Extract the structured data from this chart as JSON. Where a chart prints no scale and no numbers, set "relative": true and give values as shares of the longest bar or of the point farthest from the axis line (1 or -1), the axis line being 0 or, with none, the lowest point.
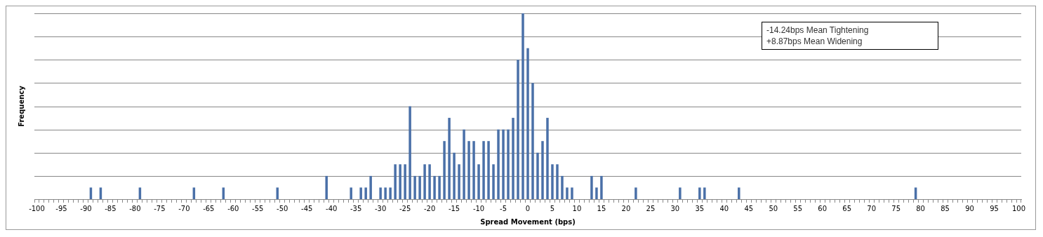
{
  "chart_data": {
    "type": "bar",
    "xlabel": "Spread Movement (bps)",
    "ylabel": "Frequency",
    "relative": true,
    "grid": "y",
    "legend": false,
    "color": "#4a70a8",
    "categories": [
      "-100",
      null,
      null,
      null,
      null,
      "-95",
      null,
      null,
      null,
      null,
      "-90",
      null,
      null,
      null,
      null,
      "-85",
      null,
      null,
      null,
      null,
      "-80",
      null,
      null,
      null,
      null,
      "-75",
      null,
      null,
      null,
      null,
      "-70",
      null,
      null,
      null,
      null,
      "-65",
      null,
      null,
      null,
      null,
      "-60",
      null,
      null,
      null,
      null,
      "-55",
      null,
      null,
      null,
      null,
      "-50",
      null,
      null,
      null,
      null,
      "-45",
      null,
      null,
      null,
      null,
      "-40",
      null,
      null,
      null,
      null,
      "-35",
      null,
      null,
      null,
      null,
      "-30",
      null,
      null,
      null,
      null,
      "-25",
      null,
      null,
      null,
      null,
      "-20",
      null,
      null,
      null,
      null,
      "-15",
      null,
      null,
      null,
      null,
      "-10",
      null,
      null,
      null,
      null,
      "-5",
      null,
      null,
      null,
      null,
      "0",
      null,
      null,
      null,
      null,
      "5",
      null,
      null,
      null,
      null,
      "10",
      null,
      null,
      null,
      null,
      "15",
      null,
      null,
      null,
      null,
      "20",
      null,
      null,
      null,
      null,
      "25",
      null,
      null,
      null,
      null,
      "30",
      null,
      null,
      null,
      null,
      "35",
      null,
      null,
      null,
      null,
      "40",
      null,
      null,
      null,
      null,
      "45",
      null,
      null,
      null,
      null,
      "50",
      null,
      null,
      null,
      null,
      "55",
      null,
      null,
      null,
      null,
      "60",
      null,
      null,
      null,
      null,
      "65",
      null,
      null,
      null,
      null,
      "70",
      null,
      null,
      null,
      null,
      "75",
      null,
      null,
      null,
      null,
      "80",
      null,
      null,
      null,
      null,
      "85",
      null,
      null,
      null,
      null,
      "90",
      null,
      null,
      null,
      null,
      "95",
      null,
      null,
      null,
      null,
      "100"
    ],
    "values": [
      0,
      0,
      0,
      0,
      0,
      0,
      0,
      0,
      0,
      0,
      0,
      0.0625,
      0,
      0.0625,
      0,
      0,
      0,
      0,
      0,
      0,
      0,
      0.0625,
      0,
      0,
      0,
      0,
      0,
      0,
      0,
      0,
      0,
      0,
      0.0625,
      0,
      0,
      0,
      0,
      0,
      0.0625,
      0,
      0,
      0,
      0,
      0,
      0,
      0,
      0,
      0,
      0,
      0.0625,
      0,
      0,
      0,
      0,
      0,
      0,
      0,
      0,
      0,
      0.125,
      0,
      0,
      0,
      0,
      0.0625,
      0,
      0.0625,
      0.0625,
      0.125,
      0,
      0.0625,
      0.0625,
      0.0625,
      0.1875,
      0.1875,
      0.1875,
      0.5,
      0.125,
      0.125,
      0.1875,
      0.1875,
      0.125,
      0.125,
      0.3125,
      0.4375,
      0.25,
      0.1875,
      0.375,
      0.3125,
      0.3125,
      0.1875,
      0.3125,
      0.3125,
      0.1875,
      0.375,
      0.375,
      0.375,
      0.4375,
      0.75,
      1,
      0.8125,
      0.625,
      0.25,
      0.3125,
      0.4375,
      0.1875,
      0.1875,
      0.125,
      0.0625,
      0.0625,
      0,
      0,
      0,
      0.125,
      0.0625,
      0.125,
      0,
      0,
      0,
      0,
      0,
      0,
      0.0625,
      0,
      0,
      0,
      0,
      0,
      0,
      0,
      0,
      0.0625,
      0,
      0,
      0,
      0.0625,
      0.0625,
      0,
      0,
      0,
      0,
      0,
      0,
      0.0625,
      0,
      0,
      0,
      0,
      0,
      0,
      0,
      0,
      0,
      0,
      0,
      0,
      0,
      0,
      0,
      0,
      0,
      0,
      0,
      0,
      0,
      0,
      0,
      0,
      0,
      0,
      0,
      0,
      0,
      0,
      0,
      0,
      0,
      0,
      0,
      0.0625,
      0,
      0,
      0,
      0,
      0,
      0,
      0,
      0,
      0,
      0,
      0,
      0,
      0,
      0,
      0,
      0,
      0,
      0,
      0,
      0,
      0
    ],
    "annotations": [
      "-14.24bps Mean Tightening",
      "+8.87bps Mean Widening"
    ]
  }
}
